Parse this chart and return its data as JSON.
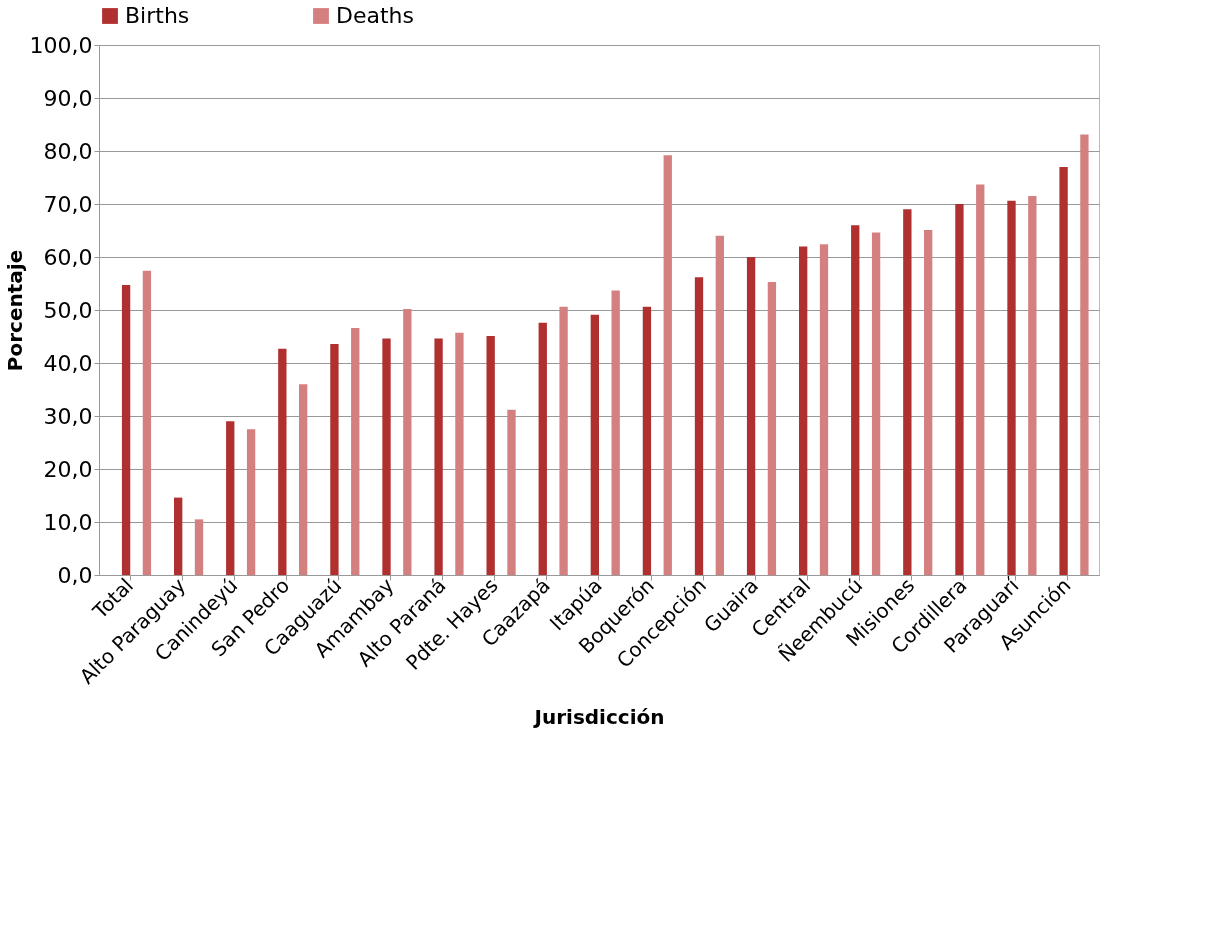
{
  "chart_data": {
    "type": "bar",
    "xlabel": "Jurisdicción",
    "ylabel": "Porcentaje",
    "categories": [
      "Total",
      "Alto Paraguay",
      "Canindeyú",
      "San Pedro",
      "Caaguazú",
      "Amambay",
      "Alto Paraná",
      "Pdte. Hayes",
      "Caazapá",
      "Itapúa",
      "Boquerón",
      "Concepción",
      "Guaira",
      "Central",
      "Ñeembucú",
      "Misiones",
      "Cordillera",
      "Paraguarí",
      "Asunción"
    ],
    "series": [
      {
        "name": "Births",
        "color": "#b03030",
        "values": [
          54.7,
          14.6,
          29.0,
          42.7,
          43.6,
          44.6,
          44.6,
          45.1,
          47.6,
          49.1,
          50.6,
          56.2,
          60.0,
          62.0,
          66.0,
          69.0,
          70.0,
          70.6,
          77.0
        ]
      },
      {
        "name": "Deaths",
        "color": "#d48080",
        "values": [
          57.4,
          10.5,
          27.5,
          36.0,
          46.6,
          50.2,
          45.7,
          31.2,
          50.6,
          53.7,
          79.2,
          64.0,
          55.3,
          62.4,
          64.6,
          65.1,
          73.7,
          71.5,
          83.1
        ]
      }
    ],
    "ylim": [
      0,
      100
    ],
    "yticks": [
      {
        "value": 0,
        "label": "0,0"
      },
      {
        "value": 10,
        "label": "10,0"
      },
      {
        "value": 20,
        "label": "20,0"
      },
      {
        "value": 30,
        "label": "30,0"
      },
      {
        "value": 40,
        "label": "40,0"
      },
      {
        "value": 50,
        "label": "50,0"
      },
      {
        "value": 60,
        "label": "60,0"
      },
      {
        "value": 70,
        "label": "70,0"
      },
      {
        "value": 80,
        "label": "80,0"
      },
      {
        "value": 90,
        "label": "90,0"
      },
      {
        "value": 100,
        "label": "100,0"
      }
    ],
    "grid": "y",
    "legend": "top"
  }
}
